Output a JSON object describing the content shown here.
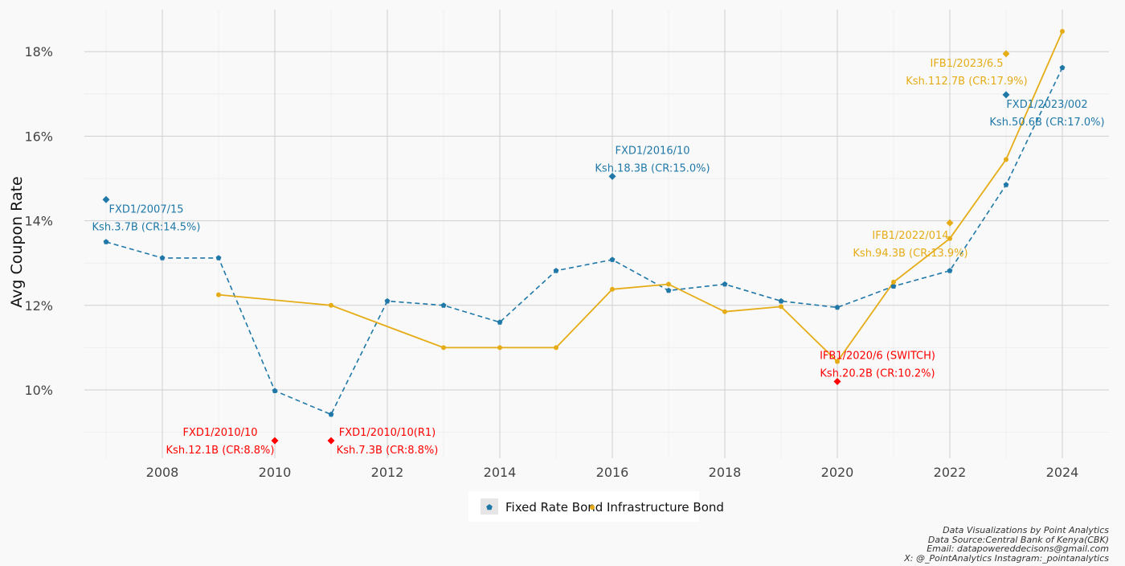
{
  "chart_data": {
    "type": "line",
    "ylabel": "Avg Coupon Rate",
    "xlabel": "",
    "xlim": [
      2006.9,
      2024.8
    ],
    "ylim": [
      8.4,
      19.0
    ],
    "x_ticks": [
      2008,
      2010,
      2012,
      2014,
      2016,
      2018,
      2020,
      2022,
      2024
    ],
    "y_ticks": [
      10,
      12,
      14,
      16,
      18
    ],
    "y_tick_format": "%",
    "grid": true,
    "legend_position": "bottom",
    "series": [
      {
        "name": "Fixed Rate Bond",
        "color": "#1f78a8",
        "line_style": "dashed",
        "marker": "pentagon",
        "x": [
          2007,
          2008,
          2009,
          2010,
          2011,
          2012,
          2013,
          2014,
          2015,
          2016,
          2017,
          2018,
          2019,
          2020,
          2021,
          2022,
          2023,
          2024
        ],
        "y": [
          13.5,
          13.12,
          13.12,
          9.98,
          9.42,
          12.1,
          12.0,
          11.6,
          12.82,
          13.08,
          12.35,
          12.5,
          12.1,
          11.95,
          12.45,
          12.82,
          14.85,
          17.62
        ]
      },
      {
        "name": "Infrastructure Bond",
        "color": "#e5ac16",
        "line_style": "solid",
        "marker": "circle",
        "x": [
          2009,
          2011,
          2013,
          2014,
          2015,
          2016,
          2017,
          2018,
          2019,
          2020,
          2021,
          2022,
          2023,
          2024
        ],
        "y": [
          12.25,
          12.0,
          11.0,
          11.0,
          11.0,
          12.38,
          12.5,
          11.85,
          11.97,
          10.67,
          12.55,
          13.58,
          15.45,
          18.48
        ]
      }
    ],
    "annotations": [
      {
        "x": 2007,
        "y": 14.5,
        "color": "#1f78a8",
        "line1": "FXD1/2007/15",
        "line2": "Ksh.3.7B (CR:14.5%)"
      },
      {
        "x": 2010,
        "y": 8.8,
        "color": "#ff0000",
        "line1": "FXD1/2010/10",
        "line2": "Ksh.12.1B (CR:8.8%)"
      },
      {
        "x": 2011,
        "y": 8.8,
        "color": "#ff0000",
        "line1": "FXD1/2010/10(R1)",
        "line2": "Ksh.7.3B (CR:8.8%)"
      },
      {
        "x": 2016,
        "y": 15.05,
        "color": "#1f78a8",
        "line1": "FXD1/2016/10",
        "line2": "Ksh.18.3B (CR:15.0%)"
      },
      {
        "x": 2020,
        "y": 10.2,
        "color": "#ff0000",
        "line1": "IFB1/2020/6 (SWITCH)",
        "line2": "Ksh.20.2B (CR:10.2%)"
      },
      {
        "x": 2022,
        "y": 13.95,
        "color": "#e5ac16",
        "line1": "IFB1/2022/014",
        "line2": "Ksh.94.3B (CR:13.9%)"
      },
      {
        "x": 2023,
        "y": 17.95,
        "color": "#e5ac16",
        "line1": "IFB1/2023/6.5",
        "line2": "Ksh.112.7B (CR:17.9%)"
      },
      {
        "x": 2023,
        "y": 16.98,
        "color": "#1f78a8",
        "line1": "FXD1/2023/002",
        "line2": "Ksh.50.6B (CR:17.0%)"
      }
    ]
  },
  "caption": {
    "line1": "Data Visualizations by Point Analytics",
    "line2": "Data Source:Central Bank of Kenya(CBK)",
    "line3": "Email: datapowereddecisons@gmail.com",
    "line4": "X: @_PointAnalytics Instagram:_pointanalytics"
  }
}
